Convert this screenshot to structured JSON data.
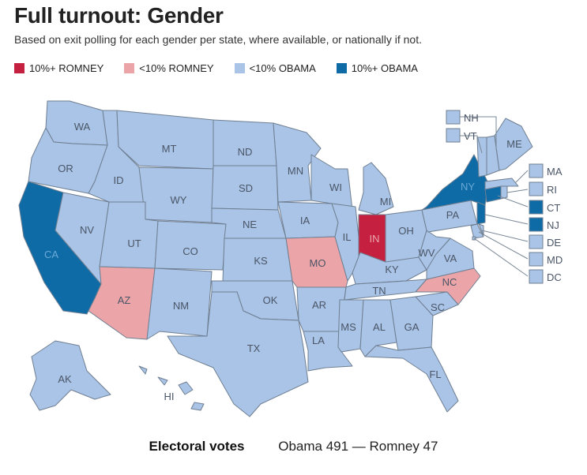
{
  "title": "Full turnout: Gender",
  "subtitle": "Based on exit polling for each gender per state, where available, or nationally if not.",
  "legend": [
    {
      "label": "10%+ ROMNEY",
      "color": "#c5203f"
    },
    {
      "label": "<10% ROMNEY",
      "color": "#eba5a8"
    },
    {
      "label": "<10% OBAMA",
      "color": "#a9c4e6"
    },
    {
      "label": "10%+ OBAMA",
      "color": "#0f6ba6"
    }
  ],
  "states": {
    "WA": "<10% OBAMA",
    "OR": "<10% OBAMA",
    "CA": "10%+ OBAMA",
    "NV": "<10% OBAMA",
    "ID": "<10% OBAMA",
    "MT": "<10% OBAMA",
    "WY": "<10% OBAMA",
    "UT": "<10% OBAMA",
    "AZ": "<10% ROMNEY",
    "CO": "<10% OBAMA",
    "NM": "<10% OBAMA",
    "ND": "<10% OBAMA",
    "SD": "<10% OBAMA",
    "NE": "<10% OBAMA",
    "KS": "<10% OBAMA",
    "OK": "<10% OBAMA",
    "TX": "<10% OBAMA",
    "MN": "<10% OBAMA",
    "IA": "<10% OBAMA",
    "MO": "<10% ROMNEY",
    "AR": "<10% OBAMA",
    "LA": "<10% OBAMA",
    "WI": "<10% OBAMA",
    "IL": "<10% OBAMA",
    "MI": "<10% OBAMA",
    "IN": "10%+ ROMNEY",
    "OH": "<10% OBAMA",
    "KY": "<10% OBAMA",
    "TN": "<10% OBAMA",
    "MS": "<10% OBAMA",
    "AL": "<10% OBAMA",
    "GA": "<10% OBAMA",
    "FL": "<10% OBAMA",
    "SC": "<10% OBAMA",
    "NC": "<10% ROMNEY",
    "VA": "<10% OBAMA",
    "WV": "<10% OBAMA",
    "PA": "<10% OBAMA",
    "NY": "10%+ OBAMA",
    "ME": "<10% OBAMA",
    "AK": "<10% OBAMA",
    "HI": "<10% OBAMA",
    "NH": "<10% OBAMA",
    "VT": "<10% OBAMA",
    "MA": "<10% OBAMA",
    "RI": "<10% OBAMA",
    "CT": "10%+ OBAMA",
    "NJ": "10%+ OBAMA",
    "DE": "<10% OBAMA",
    "MD": "<10% OBAMA",
    "DC": "<10% OBAMA"
  },
  "footer": {
    "label": "Electoral votes",
    "value": "Obama 491 — Romney 47"
  }
}
